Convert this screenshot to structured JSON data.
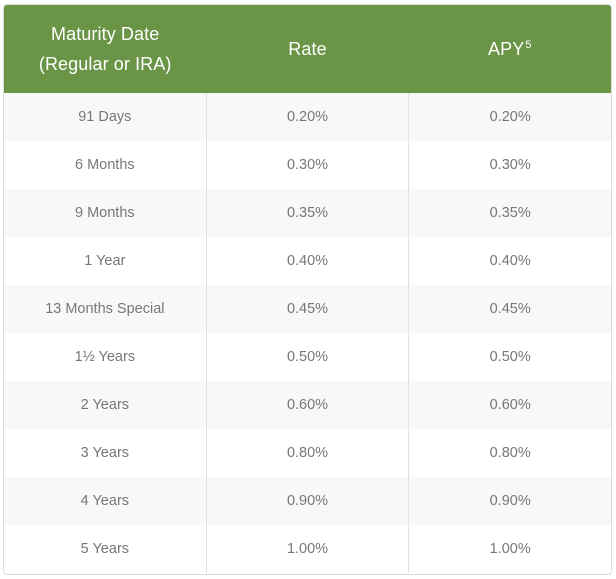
{
  "table": {
    "headers": {
      "maturity_line1": "Maturity Date",
      "maturity_line2": "(Regular or IRA)",
      "rate": "Rate",
      "apy": "APY",
      "apy_footnote": "5"
    },
    "rows": [
      {
        "maturity": "91 Days",
        "rate": "0.20%",
        "apy": "0.20%"
      },
      {
        "maturity": "6 Months",
        "rate": "0.30%",
        "apy": "0.30%"
      },
      {
        "maturity": "9 Months",
        "rate": "0.35%",
        "apy": "0.35%"
      },
      {
        "maturity": "1 Year",
        "rate": "0.40%",
        "apy": "0.40%"
      },
      {
        "maturity": "13 Months Special",
        "rate": "0.45%",
        "apy": "0.45%"
      },
      {
        "maturity": "1½ Years",
        "rate": "0.50%",
        "apy": "0.50%"
      },
      {
        "maturity": "2 Years",
        "rate": "0.60%",
        "apy": "0.60%"
      },
      {
        "maturity": "3 Years",
        "rate": "0.80%",
        "apy": "0.80%"
      },
      {
        "maturity": "4 Years",
        "rate": "0.90%",
        "apy": "0.90%"
      },
      {
        "maturity": "5 Years",
        "rate": "1.00%",
        "apy": "1.00%"
      }
    ],
    "colors": {
      "header_bg": "#6a9546",
      "header_text": "#ffffff",
      "row_alt_bg": "#f8f8f8",
      "cell_text": "#777777"
    }
  }
}
